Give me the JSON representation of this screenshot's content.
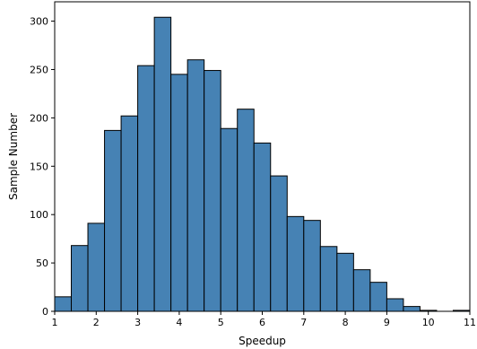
{
  "chart_data": {
    "type": "bar",
    "title": "",
    "xlabel": "Speedup",
    "ylabel": "Sample Number",
    "xlim": [
      1,
      11
    ],
    "ylim": [
      0,
      320
    ],
    "bin_width": 0.4,
    "bin_starts": [
      1.0,
      1.4,
      1.8,
      2.2,
      2.6,
      3.0,
      3.4,
      3.8,
      4.2,
      4.6,
      5.0,
      5.4,
      5.8,
      6.2,
      6.6,
      7.0,
      7.4,
      7.8,
      8.2,
      8.6,
      9.0,
      9.4,
      9.8,
      10.2,
      10.6
    ],
    "values": [
      15,
      68,
      91,
      187,
      202,
      254,
      304,
      245,
      260,
      249,
      189,
      209,
      174,
      140,
      98,
      94,
      67,
      60,
      43,
      30,
      13,
      5,
      1,
      0,
      1
    ],
    "x_ticks": [
      "1",
      "2",
      "3",
      "4",
      "5",
      "6",
      "7",
      "8",
      "9",
      "10",
      "11"
    ],
    "y_ticks": [
      "0",
      "50",
      "100",
      "150",
      "200",
      "250",
      "300"
    ],
    "bar_color": "#4682b4",
    "edge_color": "#000000",
    "grid": false,
    "legend": "none"
  }
}
